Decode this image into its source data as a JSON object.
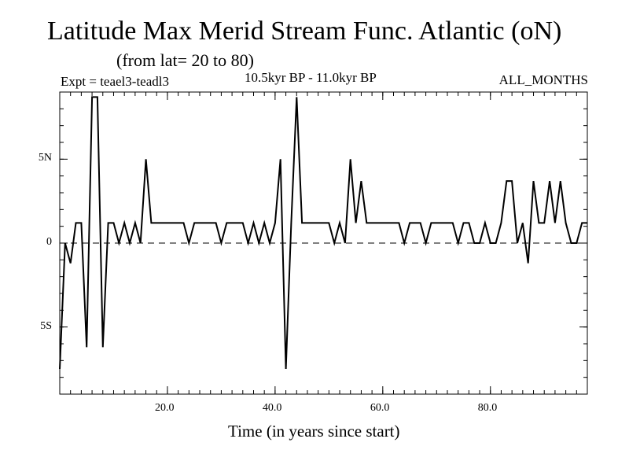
{
  "chart_data": {
    "type": "line",
    "title": "Latitude Max Merid Stream Func. Atlantic (oN)",
    "subtitle": "(from lat= 20 to 80)",
    "experiment": "Expt = teael3-teadl3",
    "period": "10.5kyr BP - 11.0kyr BP",
    "months": "ALL_MONTHS",
    "xlabel": "Time (in years since start)",
    "ylabel": "",
    "xlim": [
      0,
      98
    ],
    "ylim": [
      -9,
      9
    ],
    "x_ticks": [
      {
        "value": 20,
        "label": "20.0"
      },
      {
        "value": 40,
        "label": "40.0"
      },
      {
        "value": 60,
        "label": "60.0"
      },
      {
        "value": 80,
        "label": "80.0"
      }
    ],
    "y_ticks": [
      {
        "value": 5,
        "label": "5N"
      },
      {
        "value": 0,
        "label": "0"
      },
      {
        "value": -5,
        "label": "5S"
      }
    ],
    "zero_line": true,
    "grid": false,
    "series": [
      {
        "color": "#000000",
        "x": [
          0,
          1,
          2,
          3,
          4,
          5,
          6,
          7,
          8,
          9,
          10,
          11,
          12,
          13,
          14,
          15,
          16,
          17,
          18,
          19,
          20,
          21,
          22,
          23,
          24,
          25,
          26,
          27,
          28,
          29,
          30,
          31,
          32,
          33,
          34,
          35,
          36,
          37,
          38,
          39,
          40,
          41,
          42,
          43,
          44,
          45,
          46,
          47,
          48,
          49,
          50,
          51,
          52,
          53,
          54,
          55,
          56,
          57,
          58,
          59,
          60,
          61,
          62,
          63,
          64,
          65,
          66,
          67,
          68,
          69,
          70,
          71,
          72,
          73,
          74,
          75,
          76,
          77,
          78,
          79,
          80,
          81,
          82,
          83,
          84,
          85,
          86,
          87,
          88,
          89,
          90,
          91,
          92,
          93,
          94,
          95,
          96,
          97,
          98
        ],
        "values": [
          -7.5,
          0,
          -1.2,
          1.2,
          1.2,
          -6.2,
          8.7,
          8.7,
          -6.2,
          1.2,
          1.2,
          0,
          1.2,
          0,
          1.2,
          0,
          5,
          1.2,
          1.2,
          1.2,
          1.2,
          1.2,
          1.2,
          1.2,
          0,
          1.2,
          1.2,
          1.2,
          1.2,
          1.2,
          0,
          1.2,
          1.2,
          1.2,
          1.2,
          0,
          1.2,
          0,
          1.2,
          0,
          1.2,
          5,
          -7.5,
          1.2,
          8.7,
          1.2,
          1.2,
          1.2,
          1.2,
          1.2,
          1.2,
          0,
          1.2,
          0,
          5,
          1.2,
          3.7,
          1.2,
          1.2,
          1.2,
          1.2,
          1.2,
          1.2,
          1.2,
          0,
          1.2,
          1.2,
          1.2,
          0,
          1.2,
          1.2,
          1.2,
          1.2,
          1.2,
          0,
          1.2,
          1.2,
          0,
          0,
          1.2,
          0,
          0,
          1.2,
          3.7,
          3.7,
          0,
          1.2,
          -1.2,
          3.7,
          1.2,
          1.2,
          3.7,
          1.2,
          3.7,
          1.2,
          0,
          0,
          1.2,
          1.2
        ]
      }
    ]
  }
}
